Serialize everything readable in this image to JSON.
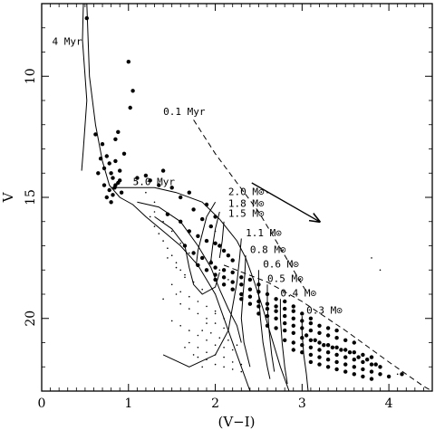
{
  "chart_data": {
    "type": "scatter",
    "title": "",
    "xlabel": "(V−I)",
    "ylabel": "V",
    "xlim": [
      0,
      4.5
    ],
    "ylim": [
      23.0,
      7.0
    ],
    "y_inverted": true,
    "grid": false,
    "x_ticks": [
      0,
      1,
      2,
      3,
      4
    ],
    "y_ticks": [
      10,
      15,
      20
    ],
    "x_tick_labels": [
      "0",
      "1",
      "2",
      "3",
      "4"
    ],
    "y_tick_labels": [
      "10",
      "15",
      "20"
    ],
    "annotations": [
      {
        "text": "4 Myr",
        "x": 0.12,
        "y": 8.7
      },
      {
        "text": "0.1 Myr",
        "x": 1.4,
        "y": 11.6
      },
      {
        "text": "5.0 Myr",
        "x": 1.05,
        "y": 14.5
      },
      {
        "text": "2.0 M⊙",
        "x": 2.15,
        "y": 14.9
      },
      {
        "text": "1.8 M⊙",
        "x": 2.15,
        "y": 15.4
      },
      {
        "text": "1.5 M⊙",
        "x": 2.15,
        "y": 15.8
      },
      {
        "text": "1.1 M⊙",
        "x": 2.35,
        "y": 16.6
      },
      {
        "text": "0.8 M⊙",
        "x": 2.4,
        "y": 17.3
      },
      {
        "text": "0.6 M⊙",
        "x": 2.55,
        "y": 17.9
      },
      {
        "text": "0.5 M⊙",
        "x": 2.6,
        "y": 18.5
      },
      {
        "text": "0.4 M⊙",
        "x": 2.75,
        "y": 19.1
      },
      {
        "text": "0.3 M⊙",
        "x": 3.05,
        "y": 19.8
      }
    ],
    "series": [
      {
        "marker": "large-dot",
        "x": [
          0.52,
          1.0,
          1.05,
          1.02,
          0.62,
          0.85,
          0.88,
          0.95,
          0.9,
          0.7,
          0.75,
          0.72,
          0.78,
          0.8,
          0.82,
          0.85,
          0.88,
          0.65,
          0.68,
          0.72,
          0.78,
          0.82,
          0.85,
          0.9,
          0.92,
          0.75,
          0.8,
          0.84,
          1.1,
          1.25,
          1.35,
          1.5,
          1.7,
          1.9,
          2.0,
          1.2,
          1.4,
          1.6,
          1.75,
          1.85,
          1.95,
          1.45,
          1.6,
          1.7,
          1.8,
          1.9,
          2.0,
          2.05,
          2.1,
          2.15,
          2.2,
          1.65,
          1.75,
          1.85,
          1.95,
          2.0,
          2.1,
          2.2,
          2.3,
          2.4,
          2.5,
          1.8,
          1.9,
          2.0,
          2.1,
          2.2,
          2.3,
          2.4,
          2.5,
          2.6,
          2.7,
          2.8,
          2.9,
          2.0,
          2.1,
          2.2,
          2.3,
          2.4,
          2.5,
          2.6,
          2.7,
          2.8,
          2.9,
          3.0,
          3.1,
          2.3,
          2.4,
          2.5,
          2.6,
          2.7,
          2.8,
          2.9,
          3.0,
          3.1,
          3.2,
          3.3,
          3.4,
          2.5,
          2.6,
          2.7,
          2.8,
          2.9,
          3.0,
          3.1,
          3.2,
          3.3,
          3.4,
          3.5,
          3.6,
          2.6,
          2.7,
          2.8,
          2.9,
          3.0,
          3.1,
          3.2,
          3.3,
          3.4,
          3.5,
          3.6,
          3.7,
          3.8,
          2.8,
          2.9,
          3.0,
          3.1,
          3.2,
          3.3,
          3.4,
          3.5,
          3.6,
          3.7,
          3.8,
          3.9,
          2.9,
          3.0,
          3.1,
          3.2,
          3.3,
          3.4,
          3.5,
          3.6,
          3.7,
          3.8,
          3.9,
          4.0,
          3.1,
          3.2,
          3.3,
          3.4,
          3.5,
          3.6,
          3.7,
          3.8,
          3.05,
          3.15,
          3.25,
          3.35,
          3.45,
          3.55,
          3.65,
          3.75,
          3.85,
          4.15
        ],
        "y": [
          7.6,
          9.4,
          10.6,
          11.3,
          12.4,
          12.6,
          12.3,
          13.2,
          13.9,
          12.8,
          13.3,
          13.8,
          13.6,
          14.0,
          14.2,
          13.5,
          14.4,
          14.0,
          13.4,
          14.5,
          14.7,
          14.9,
          14.5,
          14.3,
          14.8,
          15.0,
          15.2,
          14.6,
          14.2,
          14.3,
          14.5,
          14.6,
          14.8,
          15.3,
          15.8,
          14.1,
          13.9,
          15.0,
          15.5,
          15.9,
          16.2,
          15.7,
          16.0,
          16.4,
          16.6,
          16.8,
          16.9,
          17.0,
          17.2,
          17.4,
          17.6,
          17.0,
          17.3,
          17.5,
          17.7,
          17.9,
          18.0,
          18.1,
          18.3,
          18.4,
          18.6,
          17.8,
          18.0,
          18.2,
          18.3,
          18.5,
          18.6,
          18.8,
          18.9,
          19.0,
          19.2,
          19.3,
          19.5,
          18.4,
          18.6,
          18.8,
          19.0,
          19.1,
          19.3,
          19.4,
          19.5,
          19.6,
          19.7,
          19.8,
          20.0,
          19.2,
          19.4,
          19.5,
          19.6,
          19.7,
          19.9,
          20.0,
          20.1,
          20.2,
          20.3,
          20.4,
          20.5,
          19.8,
          19.9,
          20.0,
          20.2,
          20.3,
          20.4,
          20.5,
          20.6,
          20.7,
          20.8,
          20.9,
          21.0,
          20.3,
          20.4,
          20.5,
          20.6,
          20.8,
          20.9,
          21.0,
          21.1,
          21.2,
          21.3,
          21.4,
          21.5,
          21.6,
          20.9,
          21.0,
          21.1,
          21.2,
          21.3,
          21.4,
          21.5,
          21.6,
          21.7,
          21.8,
          21.9,
          22.0,
          21.3,
          21.4,
          21.5,
          21.6,
          21.7,
          21.8,
          21.9,
          22.0,
          22.1,
          22.2,
          22.3,
          22.4,
          21.8,
          21.9,
          22.0,
          22.1,
          22.2,
          22.3,
          22.4,
          22.5,
          20.7,
          20.9,
          21.1,
          21.2,
          21.3,
          21.4,
          21.6,
          21.7,
          21.9,
          22.3
        ]
      },
      {
        "marker": "small-dot",
        "x": [
          1.25,
          1.3,
          1.35,
          1.4,
          1.45,
          1.5,
          1.55,
          1.6,
          1.65,
          1.3,
          1.4,
          1.5,
          1.6,
          1.7,
          1.45,
          1.55,
          1.65,
          1.75,
          1.85,
          1.5,
          1.6,
          1.7,
          1.8,
          1.9,
          2.0,
          1.6,
          1.7,
          1.8,
          1.9,
          2.0,
          2.1,
          1.5,
          1.6,
          1.7,
          1.8,
          1.9,
          2.0,
          2.1,
          2.2,
          1.7,
          1.8,
          1.9,
          2.0,
          2.1,
          2.2,
          2.3,
          1.8,
          1.9,
          2.0,
          2.1,
          2.2,
          2.3,
          1.85,
          1.95,
          2.05,
          2.15,
          2.25,
          1.4,
          1.55,
          1.9,
          2.0,
          2.1,
          1.95,
          2.05,
          2.15,
          2.0,
          1.3,
          1.2,
          1.1,
          2.6,
          3.9,
          3.8,
          4.1,
          1.65,
          1.75,
          1.85
        ],
        "y": [
          15.8,
          16.2,
          16.5,
          16.8,
          17.1,
          17.4,
          17.7,
          18.0,
          18.3,
          15.6,
          16.0,
          16.4,
          16.9,
          17.3,
          17.5,
          17.9,
          18.2,
          18.5,
          18.8,
          18.6,
          18.9,
          19.1,
          19.3,
          19.5,
          19.7,
          19.4,
          19.6,
          19.8,
          20.0,
          20.2,
          20.4,
          20.1,
          20.3,
          20.5,
          20.7,
          20.9,
          21.1,
          21.2,
          21.3,
          21.0,
          21.2,
          21.4,
          21.5,
          21.6,
          21.8,
          21.9,
          21.6,
          21.7,
          21.9,
          22.0,
          22.1,
          22.2,
          20.5,
          20.6,
          20.8,
          20.9,
          21.1,
          19.2,
          19.0,
          20.2,
          19.8,
          20.0,
          17.6,
          18.0,
          18.4,
          16.4,
          15.2,
          14.8,
          14.4,
          14.8,
          18.0,
          17.5,
          22.3,
          21.2,
          21.5,
          22.0
        ]
      }
    ],
    "curves": [
      {
        "name": "4 Myr",
        "style": "solid",
        "points": [
          [
            0.48,
            7.0
          ],
          [
            0.47,
            8.5
          ],
          [
            0.5,
            10.0
          ],
          [
            0.52,
            11.0
          ],
          [
            0.5,
            12.0
          ],
          [
            0.48,
            13.0
          ],
          [
            0.46,
            13.9
          ]
        ]
      },
      {
        "name": "4 Myr (branch)",
        "style": "solid",
        "points": [
          [
            0.52,
            7.0
          ],
          [
            0.55,
            10.0
          ],
          [
            0.62,
            12.0
          ],
          [
            0.7,
            13.5
          ],
          [
            0.78,
            14.5
          ],
          [
            0.9,
            15.0
          ],
          [
            1.05,
            15.3
          ],
          [
            1.2,
            15.8
          ],
          [
            1.4,
            16.4
          ],
          [
            1.6,
            17.0
          ],
          [
            1.8,
            17.8
          ],
          [
            2.0,
            19.0
          ],
          [
            2.15,
            20.5
          ],
          [
            2.3,
            22.0
          ],
          [
            2.4,
            23.0
          ]
        ]
      },
      {
        "name": "5.0 Myr",
        "style": "solid",
        "points": [
          [
            0.8,
            14.6
          ],
          [
            1.0,
            14.6
          ],
          [
            1.3,
            14.6
          ],
          [
            1.55,
            14.8
          ],
          [
            1.85,
            15.2
          ],
          [
            2.05,
            15.9
          ],
          [
            2.25,
            16.8
          ],
          [
            2.35,
            17.5
          ],
          [
            2.45,
            18.5
          ],
          [
            2.55,
            19.6
          ],
          [
            2.65,
            20.8
          ],
          [
            2.75,
            22.0
          ],
          [
            2.85,
            23.0
          ]
        ]
      },
      {
        "name": "envelope",
        "style": "solid",
        "points": [
          [
            1.1,
            15.2
          ],
          [
            1.35,
            15.4
          ],
          [
            1.6,
            16.0
          ],
          [
            1.8,
            17.0
          ],
          [
            1.95,
            17.9
          ],
          [
            2.05,
            18.8
          ],
          [
            2.15,
            19.6
          ],
          [
            2.25,
            20.3
          ],
          [
            2.3,
            21.0
          ]
        ]
      },
      {
        "name": "loop",
        "style": "solid",
        "points": [
          [
            1.3,
            15.8
          ],
          [
            1.5,
            16.3
          ],
          [
            1.65,
            17.0
          ],
          [
            1.7,
            17.9
          ],
          [
            1.75,
            18.6
          ],
          [
            1.85,
            19.0
          ],
          [
            2.0,
            18.7
          ],
          [
            2.05,
            18.1
          ]
        ]
      },
      {
        "name": "track 2.0",
        "style": "solid",
        "points": [
          [
            2.0,
            15.2
          ],
          [
            1.9,
            15.8
          ],
          [
            1.85,
            16.5
          ],
          [
            1.8,
            17.2
          ],
          [
            1.78,
            17.8
          ]
        ]
      },
      {
        "name": "track 1.8",
        "style": "solid",
        "points": [
          [
            2.05,
            15.6
          ],
          [
            2.0,
            16.3
          ],
          [
            1.97,
            17.0
          ],
          [
            1.95,
            17.6
          ]
        ]
      },
      {
        "name": "track 1.5",
        "style": "solid",
        "points": [
          [
            2.1,
            16.0
          ],
          [
            2.08,
            16.8
          ],
          [
            2.05,
            17.5
          ]
        ]
      },
      {
        "name": "track 1.1",
        "style": "solid",
        "points": [
          [
            2.3,
            16.7
          ],
          [
            2.28,
            17.5
          ],
          [
            2.25,
            18.5
          ],
          [
            2.2,
            19.5
          ],
          [
            2.15,
            20.5
          ],
          [
            2.0,
            21.5
          ],
          [
            1.7,
            22.0
          ],
          [
            1.4,
            21.5
          ]
        ]
      },
      {
        "name": "track 0.8",
        "style": "solid",
        "points": [
          [
            2.35,
            17.4
          ],
          [
            2.34,
            18.2
          ],
          [
            2.32,
            19.0
          ],
          [
            2.3,
            20.0
          ],
          [
            2.33,
            21.0
          ],
          [
            2.4,
            22.0
          ]
        ]
      },
      {
        "name": "track 0.6",
        "style": "solid",
        "points": [
          [
            2.5,
            18.0
          ],
          [
            2.5,
            19.0
          ],
          [
            2.52,
            20.0
          ],
          [
            2.55,
            21.0
          ],
          [
            2.6,
            22.0
          ],
          [
            2.63,
            22.5
          ]
        ]
      },
      {
        "name": "track 0.5",
        "style": "solid",
        "points": [
          [
            2.6,
            18.6
          ],
          [
            2.6,
            19.5
          ],
          [
            2.62,
            20.5
          ],
          [
            2.65,
            21.5
          ],
          [
            2.68,
            22.2
          ]
        ]
      },
      {
        "name": "track 0.4",
        "style": "solid",
        "points": [
          [
            2.75,
            19.2
          ],
          [
            2.75,
            20.0
          ],
          [
            2.77,
            21.0
          ],
          [
            2.8,
            22.0
          ],
          [
            2.83,
            22.7
          ]
        ]
      },
      {
        "name": "track 0.3",
        "style": "solid",
        "points": [
          [
            3.0,
            19.9
          ],
          [
            3.0,
            20.6
          ],
          [
            3.02,
            21.5
          ],
          [
            3.05,
            22.3
          ],
          [
            3.07,
            23.0
          ]
        ]
      },
      {
        "name": "0.1 Myr",
        "style": "dashed",
        "points": [
          [
            1.75,
            11.8
          ],
          [
            2.0,
            13.2
          ],
          [
            2.25,
            14.4
          ],
          [
            2.5,
            15.6
          ],
          [
            2.7,
            16.8
          ],
          [
            2.9,
            18.0
          ],
          [
            3.05,
            18.9
          ]
        ]
      },
      {
        "name": "dashed boundary",
        "style": "dashed",
        "points": [
          [
            2.1,
            17.8
          ],
          [
            2.6,
            18.5
          ],
          [
            3.0,
            19.3
          ],
          [
            3.5,
            20.5
          ],
          [
            4.0,
            21.8
          ],
          [
            4.4,
            22.8
          ],
          [
            4.5,
            23.0
          ]
        ]
      },
      {
        "name": "reddening vector",
        "style": "arrow",
        "points": [
          [
            2.42,
            14.4
          ],
          [
            3.2,
            16.0
          ]
        ]
      }
    ]
  }
}
